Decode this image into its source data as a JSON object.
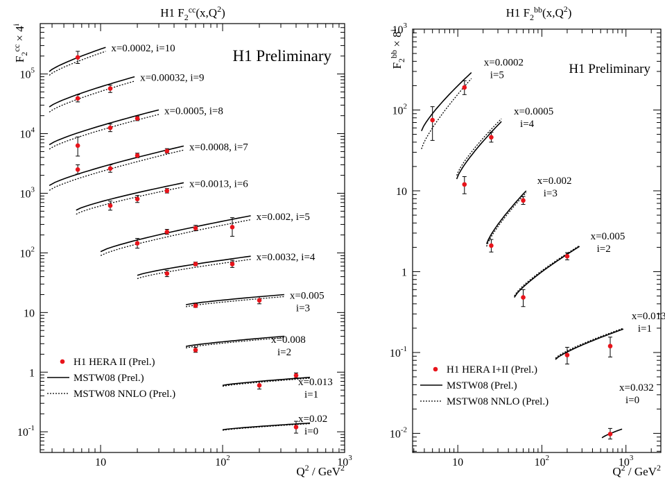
{
  "chart_data": [
    {
      "type": "scatter",
      "title_main": "H1 F",
      "title_sub": "2",
      "title_sup": "cc",
      "title_tail": "(x,Q",
      "title_tail_sup": "2",
      "title_end": ")",
      "watermark": "H1 Preliminary",
      "ylabel_main": "F",
      "ylabel_sub": "2",
      "ylabel_sup": "cc",
      "ylabel_mult": "× 4",
      "ylabel_exp": "i",
      "xlabel_main": "Q",
      "xlabel_sup": "2",
      "xlabel_tail": " / GeV",
      "xlabel_tail_sup": "2",
      "xscale": "log",
      "yscale": "log",
      "xlim": [
        3.2,
        1000
      ],
      "ylim": [
        0.045,
        700000
      ],
      "x_ticks": [
        {
          "value": 10,
          "base": "10",
          "exp": ""
        },
        {
          "value": 100,
          "base": "10",
          "exp": "2"
        },
        {
          "value": 1000,
          "base": "10",
          "exp": "3"
        }
      ],
      "y_ticks": [
        {
          "value": 0.1,
          "base": "10",
          "exp": "-1"
        },
        {
          "value": 1,
          "base": "1",
          "exp": ""
        },
        {
          "value": 10,
          "base": "10",
          "exp": ""
        },
        {
          "value": 100,
          "base": "10",
          "exp": "2"
        },
        {
          "value": 1000,
          "base": "10",
          "exp": "3"
        },
        {
          "value": 10000,
          "base": "10",
          "exp": "4"
        },
        {
          "value": 100000,
          "base": "10",
          "exp": "5"
        }
      ],
      "legend": [
        {
          "label": "H1 HERA II (Prel.)",
          "style": "marker"
        },
        {
          "label": "MSTW08 (Prel.)",
          "style": "solid"
        },
        {
          "label": "MSTW08 NNLO (Prel.)",
          "style": "dotted"
        }
      ],
      "series": [
        {
          "label_line1": "x=0.0002, i=10",
          "label_line2": "",
          "theory_x": [
            3.8,
            11
          ],
          "solid": [
            110000,
            280000
          ],
          "dotted": [
            95000,
            240000
          ],
          "points": [
            {
              "x": 6.5,
              "y": 190000,
              "lo": 150000,
              "hi": 240000
            }
          ]
        },
        {
          "label_line1": "x=0.00032, i=9",
          "label_line2": "",
          "theory_x": [
            3.8,
            19
          ],
          "solid": [
            28000,
            90000
          ],
          "dotted": [
            23000,
            76000
          ],
          "points": [
            {
              "x": 6.5,
              "y": 39000,
              "lo": 34000,
              "hi": 45000
            },
            {
              "x": 12,
              "y": 57000,
              "lo": 49000,
              "hi": 65000
            }
          ]
        },
        {
          "label_line1": "x=0.0005, i=8",
          "label_line2": "",
          "theory_x": [
            3.8,
            30
          ],
          "solid": [
            6500,
            25000
          ],
          "dotted": [
            5500,
            21000
          ],
          "points": [
            {
              "x": 6.5,
              "y": 6300,
              "lo": 4200,
              "hi": 8800
            },
            {
              "x": 12,
              "y": 12500,
              "lo": 10800,
              "hi": 14500
            },
            {
              "x": 20,
              "y": 18000,
              "lo": 16500,
              "hi": 19500
            }
          ]
        },
        {
          "label_line1": "x=0.0008, i=7",
          "label_line2": "",
          "theory_x": [
            3.8,
            48
          ],
          "solid": [
            1350,
            6200
          ],
          "dotted": [
            1120,
            5300
          ],
          "points": [
            {
              "x": 6.5,
              "y": 2500,
              "lo": 2100,
              "hi": 3000
            },
            {
              "x": 12,
              "y": 2600,
              "lo": 2250,
              "hi": 3000
            },
            {
              "x": 20,
              "y": 4300,
              "lo": 3950,
              "hi": 4700
            },
            {
              "x": 35,
              "y": 5100,
              "lo": 4700,
              "hi": 5600
            }
          ]
        },
        {
          "label_line1": "x=0.0013, i=6",
          "label_line2": "",
          "theory_x": [
            6.3,
            48
          ],
          "solid": [
            520,
            1500
          ],
          "dotted": [
            445,
            1280
          ],
          "points": [
            {
              "x": 12,
              "y": 620,
              "lo": 520,
              "hi": 740
            },
            {
              "x": 20,
              "y": 800,
              "lo": 700,
              "hi": 920
            },
            {
              "x": 35,
              "y": 1100,
              "lo": 1010,
              "hi": 1200
            }
          ]
        },
        {
          "label_line1": "x=0.002, i=5",
          "label_line2": "",
          "theory_x": [
            10,
            170
          ],
          "solid": [
            105,
            420
          ],
          "dotted": [
            90,
            360
          ],
          "points": [
            {
              "x": 20,
              "y": 145,
              "lo": 120,
              "hi": 175
            },
            {
              "x": 35,
              "y": 225,
              "lo": 205,
              "hi": 248
            },
            {
              "x": 60,
              "y": 260,
              "lo": 235,
              "hi": 290
            },
            {
              "x": 120,
              "y": 270,
              "lo": 190,
              "hi": 390
            }
          ]
        },
        {
          "label_line1": "x=0.0032, i=4",
          "label_line2": "",
          "theory_x": [
            20,
            170
          ],
          "solid": [
            42,
            88
          ],
          "dotted": [
            37,
            78
          ],
          "points": [
            {
              "x": 35,
              "y": 45,
              "lo": 40,
              "hi": 51
            },
            {
              "x": 60,
              "y": 65,
              "lo": 61,
              "hi": 70
            },
            {
              "x": 120,
              "y": 65,
              "lo": 57,
              "hi": 75
            }
          ]
        },
        {
          "label_line1": "x=0.005",
          "label_line2": "i=3",
          "theory_x": [
            50,
            320
          ],
          "solid": [
            13.5,
            20
          ],
          "dotted": [
            12.5,
            18.5
          ],
          "points": [
            {
              "x": 60,
              "y": 13,
              "lo": 12.2,
              "hi": 13.9
            },
            {
              "x": 200,
              "y": 16,
              "lo": 14,
              "hi": 18.5
            }
          ]
        },
        {
          "label_line1": "x=0.008",
          "label_line2": "i=2",
          "theory_x": [
            50,
            320
          ],
          "solid": [
            2.7,
            4
          ],
          "dotted": [
            2.55,
            3.8
          ],
          "points": [
            {
              "x": 60,
              "y": 2.35,
              "lo": 2.15,
              "hi": 2.6
            }
          ]
        },
        {
          "label_line1": "x=0.013",
          "label_line2": "i=1",
          "theory_x": [
            100,
            520
          ],
          "solid": [
            0.6,
            0.82
          ],
          "dotted": [
            0.58,
            0.79
          ],
          "points": [
            {
              "x": 200,
              "y": 0.6,
              "lo": 0.52,
              "hi": 0.7
            },
            {
              "x": 400,
              "y": 0.88,
              "lo": 0.8,
              "hi": 0.97
            }
          ]
        },
        {
          "label_line1": "x=0.02",
          "label_line2": "i=0",
          "theory_x": [
            100,
            520
          ],
          "solid": [
            0.108,
            0.14
          ],
          "dotted": [
            0.106,
            0.137
          ],
          "points": [
            {
              "x": 400,
              "y": 0.12,
              "lo": 0.095,
              "hi": 0.15
            }
          ]
        }
      ]
    },
    {
      "type": "scatter",
      "title_main": "H1 F",
      "title_sub": "2",
      "title_sup": "bb",
      "title_tail": "(x,Q",
      "title_tail_sup": "2",
      "title_end": ")",
      "watermark": "H1 Preliminary",
      "ylabel_main": "F",
      "ylabel_sub": "2",
      "ylabel_sup": "bb",
      "ylabel_mult": "× 8",
      "ylabel_exp": "i",
      "xlabel_main": "Q",
      "xlabel_sup": "2",
      "xlabel_tail": " / GeV",
      "xlabel_tail_sup": "2",
      "xscale": "log",
      "yscale": "log",
      "xlim": [
        2.9,
        2600
      ],
      "ylim": [
        0.0058,
        1000
      ],
      "x_ticks": [
        {
          "value": 10,
          "base": "10",
          "exp": ""
        },
        {
          "value": 100,
          "base": "10",
          "exp": "2"
        },
        {
          "value": 1000,
          "base": "10",
          "exp": "3"
        }
      ],
      "y_ticks": [
        {
          "value": 0.01,
          "base": "10",
          "exp": "-2"
        },
        {
          "value": 0.1,
          "base": "10",
          "exp": "-1"
        },
        {
          "value": 1,
          "base": "1",
          "exp": ""
        },
        {
          "value": 10,
          "base": "10",
          "exp": ""
        },
        {
          "value": 100,
          "base": "10",
          "exp": "2"
        },
        {
          "value": 1000,
          "base": "10",
          "exp": "3"
        }
      ],
      "legend": [
        {
          "label": "H1 HERA I+II (Prel.)",
          "style": "marker"
        },
        {
          "label": "MSTW08 (Prel.)",
          "style": "solid"
        },
        {
          "label": "MSTW08 NNLO (Prel.)",
          "style": "dotted"
        }
      ],
      "series": [
        {
          "label_line1": "x=0.0002",
          "label_line2": "i=5",
          "theory_x": [
            3.7,
            14.5
          ],
          "solid": [
            55,
            290
          ],
          "dotted": [
            33,
            245
          ],
          "points": [
            {
              "x": 5,
              "y": 75,
              "lo": 42,
              "hi": 110
            },
            {
              "x": 12,
              "y": 190,
              "lo": 155,
              "hi": 230
            }
          ]
        },
        {
          "label_line1": "x=0.0005",
          "label_line2": "i=4",
          "theory_x": [
            9.7,
            33
          ],
          "solid": [
            14,
            72
          ],
          "dotted": [
            15.5,
            78
          ],
          "points": [
            {
              "x": 12,
              "y": 12,
              "lo": 9.2,
              "hi": 15
            },
            {
              "x": 25,
              "y": 46,
              "lo": 40,
              "hi": 53
            }
          ]
        },
        {
          "label_line1": "x=0.002",
          "label_line2": "i=3",
          "theory_x": [
            22,
            65
          ],
          "solid": [
            2.2,
            10
          ],
          "dotted": [
            2.05,
            9.5
          ],
          "points": [
            {
              "x": 25,
              "y": 2.1,
              "lo": 1.75,
              "hi": 2.5
            },
            {
              "x": 60,
              "y": 7.6,
              "lo": 6.8,
              "hi": 8.5
            }
          ]
        },
        {
          "label_line1": "x=0.005",
          "label_line2": "i=2",
          "theory_x": [
            47,
            280
          ],
          "solid": [
            0.48,
            2.05
          ],
          "dotted": [
            0.5,
            2.1
          ],
          "points": [
            {
              "x": 60,
              "y": 0.48,
              "lo": 0.37,
              "hi": 0.6
            },
            {
              "x": 200,
              "y": 1.55,
              "lo": 1.4,
              "hi": 1.72
            }
          ]
        },
        {
          "label_line1": "x=0.013",
          "label_line2": "i=1",
          "theory_x": [
            145,
            930
          ],
          "solid": [
            0.082,
            0.195
          ],
          "dotted": [
            0.085,
            0.2
          ],
          "points": [
            {
              "x": 200,
              "y": 0.093,
              "lo": 0.072,
              "hi": 0.116
            },
            {
              "x": 650,
              "y": 0.12,
              "lo": 0.088,
              "hi": 0.155
            }
          ]
        },
        {
          "label_line1": "x=0.032",
          "label_line2": "i=0",
          "theory_x": [
            520,
            900
          ],
          "solid": [
            0.0088,
            0.0113
          ],
          "dotted": [
            0.0088,
            0.0113
          ],
          "points": [
            {
              "x": 650,
              "y": 0.0098,
              "lo": 0.0085,
              "hi": 0.0115
            }
          ]
        }
      ]
    }
  ]
}
